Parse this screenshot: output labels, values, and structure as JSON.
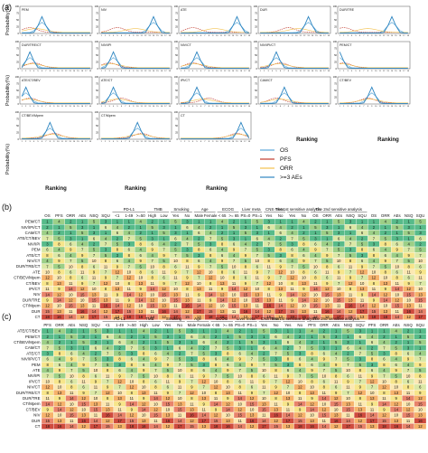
{
  "panels": {
    "a_label": "(a)",
    "b_label": "(b)",
    "c_label": "(c)"
  },
  "panel_a": {
    "ylabel": "Probability(%)",
    "xlabel": "Ranking",
    "ytick_labels": [
      "0",
      "25",
      "50",
      "75",
      "100"
    ],
    "legend": [
      "OS",
      "PFS",
      "ORR",
      ">=3 AEs"
    ],
    "series_colors": {
      "OS": "#5aa7d8",
      "PFS": "#c0392b",
      "ORR": "#f2c14e",
      "AEs": "#2e86c1"
    },
    "subplots": [
      {
        "name": "PEM",
        "os_peak": 6,
        "pfs_peak": 3
      },
      {
        "name": "NIV",
        "os_peak": 14,
        "pfs_peak": 5
      },
      {
        "name": "ATE",
        "os_peak": 15,
        "pfs_peak": 4
      },
      {
        "name": "DUR",
        "os_peak": 13,
        "pfs_peak": 8
      },
      {
        "name": "DUR/TRE",
        "os_peak": 14,
        "pfs_peak": 2
      },
      {
        "name": "DUR/TRE/CT",
        "os_peak": 3,
        "pfs_peak": 4
      },
      {
        "name": "NIV/IPI",
        "os_peak": 4,
        "pfs_peak": 3
      },
      {
        "name": "NIV/CT",
        "os_peak": 5,
        "pfs_peak": 4
      },
      {
        "name": "NIV/IPI/CT",
        "os_peak": 5,
        "pfs_peak": 6
      },
      {
        "name": "PEM/CT",
        "os_peak": 1,
        "pfs_peak": 2
      },
      {
        "name": "ATE/CT/BEV",
        "os_peak": 2,
        "pfs_peak": 3
      },
      {
        "name": "ATE/CT",
        "os_peak": 4,
        "pfs_peak": 6
      },
      {
        "name": "IPI/CT",
        "os_peak": 5,
        "pfs_peak": 8
      },
      {
        "name": "CAM/CT",
        "os_peak": 7,
        "pfs_peak": 5
      },
      {
        "name": "CT/BEV",
        "os_peak": 9,
        "pfs_peak": 8
      },
      {
        "name": "CT/BEV/Mpem",
        "os_peak": 8,
        "pfs_peak": 9
      },
      {
        "name": "CT/Mpem",
        "os_peak": 10,
        "pfs_peak": 11
      },
      {
        "name": "CT",
        "os_peak": 16,
        "pfs_peak": 15
      }
    ]
  },
  "panel_b": {
    "group_headers": [
      "PD-L1",
      "TMB",
      "Smoking",
      "Age",
      "ECOG",
      "Liver meta",
      "CNS meta",
      "The 1st sensitive analysis",
      "The 2nd sensitive analysis"
    ],
    "columns": [
      "OS",
      "PFS",
      "ORR",
      "AEs",
      "NSQ",
      "SQU",
      "<1",
      "1-49",
      ">=50",
      "High",
      "Low",
      "Yes",
      "No",
      "Male",
      "Female",
      "< 65",
      ">= 65",
      "PS=0",
      "PS=1",
      "Yes",
      "No",
      "Yes",
      "No",
      "OS",
      "ORR",
      "AEs",
      "NSQ",
      "SQU",
      "OS",
      "ORR",
      "AEs",
      "NSQ",
      "SQU"
    ],
    "rows": [
      "PEM/CT",
      "NIV/IPI/CT",
      "CAM/CT",
      "ATE/CT/BEV",
      "NIV/IPI",
      "PEM",
      "ATE/CT",
      "NIV/CT",
      "DUR/TRE/CT",
      "ATE",
      "CT/BEV/Mpem",
      "CT/BEV",
      "IPI/CT",
      "NIV",
      "DUR/TRE",
      "CT/Mpem",
      "DUR",
      "CT"
    ]
  },
  "panel_c": {
    "group_headers": [
      "PD-L1",
      "TMB",
      "Smoking",
      "Age",
      "ECOG",
      "Liver meta",
      "CNS meta",
      "The 1st sensitive analysis",
      "The 2nd sensitive analysis"
    ],
    "columns": [
      "PFS",
      "ORR",
      "AEs",
      "NSQ",
      "SQU",
      "<1",
      "1-49",
      ">=50",
      "High",
      "Low",
      "Yes",
      "No",
      "Male",
      "Female",
      "< 65",
      ">= 65",
      "PS=0",
      "PS=1",
      "Yes",
      "No",
      "Yes",
      "No",
      "PFS",
      "ORR",
      "AEs",
      "NSQ",
      "SQU",
      "PFS",
      "ORR",
      "AEs",
      "NSQ",
      "SQU"
    ],
    "rows": [
      "ATE/CT/BEV",
      "PEM/CT",
      "CT/BEV/Mpem",
      "CAM/CT",
      "ATE/CT",
      "NIV/IPI/CT",
      "PEM",
      "ATE",
      "NIV/IPI",
      "IPI/CT",
      "NIV/CT",
      "DUR/TRE/CT",
      "DUR/TRE",
      "CT/Mpem",
      "CT/BEV",
      "NIV",
      "DUR",
      "CT"
    ]
  }
}
